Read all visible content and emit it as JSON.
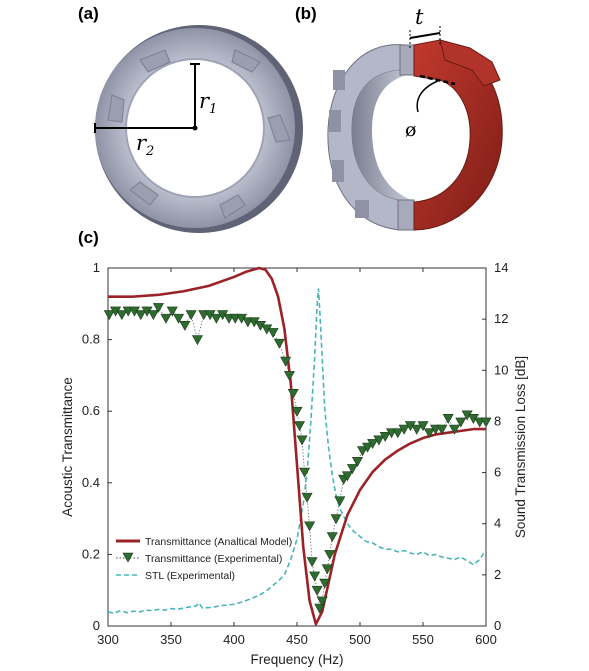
{
  "panels": {
    "a": {
      "label": "(a)",
      "r1_symbol": "r",
      "r1_sub": "1",
      "r2_symbol": "r",
      "r2_sub": "2"
    },
    "b": {
      "label": "(b)",
      "t_symbol": "t",
      "phi_symbol": "ø"
    },
    "c": {
      "label": "(c)"
    }
  },
  "colors": {
    "model": "#9b2226",
    "experimental_marker": "#2e6b2e",
    "stl": "#49b5b8",
    "ring_light": "#b8bccd",
    "ring_dark": "#5e6274",
    "red_part": "#a82b22"
  },
  "chart_data": {
    "type": "line",
    "xlabel": "Frequency (Hz)",
    "ylabel": "Acoustic Transmittance",
    "ylabel_right": "Sound Transmission Loss [dB]",
    "xlim": [
      300,
      600
    ],
    "ylim": [
      0,
      1
    ],
    "ylim_right": [
      0,
      14
    ],
    "xticks": [
      300,
      350,
      400,
      450,
      500,
      550,
      600
    ],
    "yticks": [
      0,
      0.2,
      0.4,
      0.6,
      0.8,
      1
    ],
    "yticks_right": [
      0,
      2,
      4,
      6,
      8,
      10,
      12,
      14
    ],
    "legend_position": "bottom-left",
    "series": [
      {
        "name": "Transmittance (Analtical Model)",
        "axis": "left",
        "style": "solid",
        "x": [
          300,
          320,
          340,
          360,
          380,
          400,
          410,
          420,
          425,
          430,
          435,
          440,
          445,
          450,
          455,
          460,
          465,
          470,
          475,
          480,
          490,
          500,
          510,
          520,
          530,
          540,
          550,
          560,
          570,
          580,
          590,
          600
        ],
        "y": [
          0.92,
          0.92,
          0.925,
          0.935,
          0.95,
          0.975,
          0.99,
          1.0,
          0.995,
          0.97,
          0.92,
          0.83,
          0.68,
          0.45,
          0.22,
          0.07,
          0.005,
          0.04,
          0.12,
          0.2,
          0.31,
          0.38,
          0.43,
          0.465,
          0.49,
          0.51,
          0.525,
          0.535,
          0.54,
          0.545,
          0.55,
          0.55
        ]
      },
      {
        "name": "Transmittance (Experimental)",
        "axis": "left",
        "style": "dotted-triangles",
        "x": [
          301,
          306,
          311,
          316,
          321,
          326,
          331,
          336,
          340,
          346,
          351,
          356,
          361,
          366,
          371,
          376,
          381,
          386,
          391,
          396,
          401,
          406,
          411,
          416,
          421,
          426,
          431,
          436,
          441,
          444,
          447,
          450,
          452,
          454,
          456,
          458,
          460,
          462,
          464,
          466,
          468,
          470,
          472,
          474,
          476,
          478,
          481,
          484,
          487,
          490,
          494,
          498,
          502,
          506,
          510,
          515,
          520,
          525,
          530,
          535,
          540,
          545,
          550,
          555,
          560,
          565,
          570,
          575,
          580,
          585,
          590,
          595,
          600
        ],
        "y": [
          0.87,
          0.88,
          0.87,
          0.88,
          0.88,
          0.87,
          0.88,
          0.87,
          0.89,
          0.86,
          0.88,
          0.86,
          0.84,
          0.87,
          0.8,
          0.87,
          0.87,
          0.86,
          0.87,
          0.86,
          0.86,
          0.86,
          0.85,
          0.85,
          0.84,
          0.83,
          0.82,
          0.79,
          0.74,
          0.7,
          0.65,
          0.6,
          0.56,
          0.52,
          0.43,
          0.36,
          0.28,
          0.18,
          0.14,
          0.1,
          0.05,
          0.07,
          0.12,
          0.16,
          0.2,
          0.25,
          0.3,
          0.35,
          0.41,
          0.42,
          0.44,
          0.46,
          0.49,
          0.5,
          0.51,
          0.52,
          0.53,
          0.54,
          0.54,
          0.55,
          0.56,
          0.55,
          0.56,
          0.54,
          0.55,
          0.55,
          0.58,
          0.55,
          0.57,
          0.59,
          0.58,
          0.57,
          0.57
        ]
      },
      {
        "name": "STL (Experimental)",
        "axis": "right",
        "style": "dashed",
        "x": [
          300,
          305,
          310,
          315,
          320,
          325,
          330,
          335,
          340,
          345,
          350,
          355,
          360,
          365,
          370,
          372,
          375,
          380,
          385,
          390,
          395,
          400,
          405,
          410,
          415,
          420,
          425,
          430,
          435,
          440,
          445,
          450,
          455,
          458,
          461,
          464,
          466,
          467,
          468,
          470,
          472,
          475,
          478,
          481,
          484,
          487,
          490,
          495,
          500,
          505,
          510,
          515,
          520,
          525,
          530,
          535,
          540,
          545,
          550,
          555,
          560,
          565,
          570,
          575,
          580,
          585,
          590,
          595,
          600
        ],
        "y": [
          0.55,
          0.5,
          0.6,
          0.52,
          0.58,
          0.55,
          0.62,
          0.6,
          0.65,
          0.62,
          0.68,
          0.65,
          0.7,
          0.75,
          0.78,
          0.9,
          0.7,
          0.72,
          0.75,
          0.8,
          0.82,
          0.85,
          0.92,
          1.0,
          1.1,
          1.2,
          1.35,
          1.55,
          1.75,
          2.0,
          2.6,
          3.4,
          4.8,
          6.0,
          8.0,
          10.5,
          12.6,
          13.2,
          12.4,
          10.5,
          8.5,
          7.0,
          5.9,
          5.1,
          4.6,
          4.3,
          4.0,
          3.7,
          3.5,
          3.3,
          3.25,
          3.1,
          3.0,
          3.0,
          2.9,
          2.95,
          2.85,
          2.8,
          2.9,
          2.75,
          2.8,
          2.7,
          2.65,
          2.6,
          2.7,
          2.55,
          2.4,
          2.6,
          3.0
        ]
      }
    ]
  }
}
